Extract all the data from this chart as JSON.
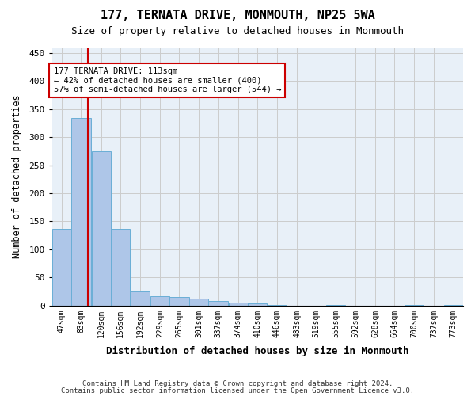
{
  "title": "177, TERNATA DRIVE, MONMOUTH, NP25 5WA",
  "subtitle": "Size of property relative to detached houses in Monmouth",
  "xlabel": "Distribution of detached houses by size in Monmouth",
  "ylabel": "Number of detached properties",
  "footer_line1": "Contains HM Land Registry data © Crown copyright and database right 2024.",
  "footer_line2": "Contains public sector information licensed under the Open Government Licence v3.0.",
  "property_size": 113,
  "property_label": "177 TERNATA DRIVE: 113sqm",
  "annotation_line2": "← 42% of detached houses are smaller (400)",
  "annotation_line3": "57% of semi-detached houses are larger (544) →",
  "bar_color": "#aec6e8",
  "bar_edge_color": "#6aaed6",
  "red_line_color": "#cc0000",
  "annotation_box_edge": "#cc0000",
  "background_color": "#ffffff",
  "ax_background": "#e8f0f8",
  "grid_color": "#cccccc",
  "bins": [
    47,
    83,
    120,
    156,
    192,
    229,
    265,
    301,
    337,
    374,
    410,
    446,
    483,
    519,
    555,
    592,
    628,
    664,
    700,
    737,
    773
  ],
  "counts": [
    137,
    335,
    275,
    137,
    25,
    17,
    15,
    12,
    8,
    5,
    4,
    1,
    0,
    0,
    1,
    0,
    0,
    0,
    1,
    0,
    1
  ],
  "ylim": [
    0,
    460
  ],
  "yticks": [
    0,
    50,
    100,
    150,
    200,
    250,
    300,
    350,
    400,
    450
  ],
  "figsize": [
    6.0,
    5.0
  ],
  "dpi": 100
}
